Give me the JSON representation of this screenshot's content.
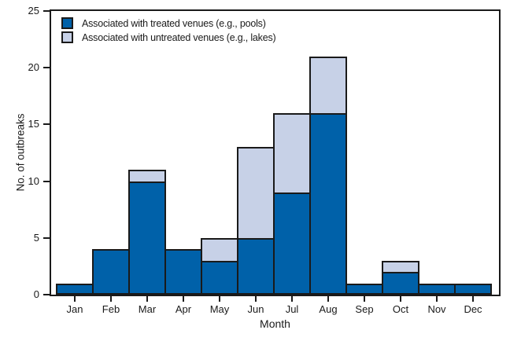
{
  "figure": {
    "background_color": "#ffffff",
    "outline_color": "#1a1a1a"
  },
  "chart_data": {
    "type": "bar",
    "stacked": true,
    "title": "",
    "xlabel": "Month",
    "ylabel": "No. of outbreaks",
    "categories": [
      "Jan",
      "Feb",
      "Mar",
      "Apr",
      "May",
      "Jun",
      "Jul",
      "Aug",
      "Sep",
      "Oct",
      "Nov",
      "Dec"
    ],
    "series": [
      {
        "name": "Associated with treated venues (e.g., pools)",
        "color": "#0061A9",
        "values": [
          1,
          4,
          10,
          4,
          3,
          5,
          9,
          16,
          1,
          2,
          1,
          1
        ]
      },
      {
        "name": "Associated with untreated venues (e.g., lakes)",
        "color": "#C7D1E7",
        "values": [
          0,
          0,
          1,
          0,
          2,
          8,
          7,
          5,
          0,
          1,
          0,
          0
        ]
      }
    ],
    "totals": [
      1,
      4,
      11,
      4,
      5,
      13,
      16,
      21,
      1,
      3,
      1,
      1
    ],
    "ylim": [
      0,
      25
    ],
    "yticks": [
      "0",
      "5",
      "10",
      "15",
      "20",
      "25"
    ],
    "grid": false,
    "legend_position": "top-left",
    "bar_outline_color": "#1a1a1a"
  }
}
